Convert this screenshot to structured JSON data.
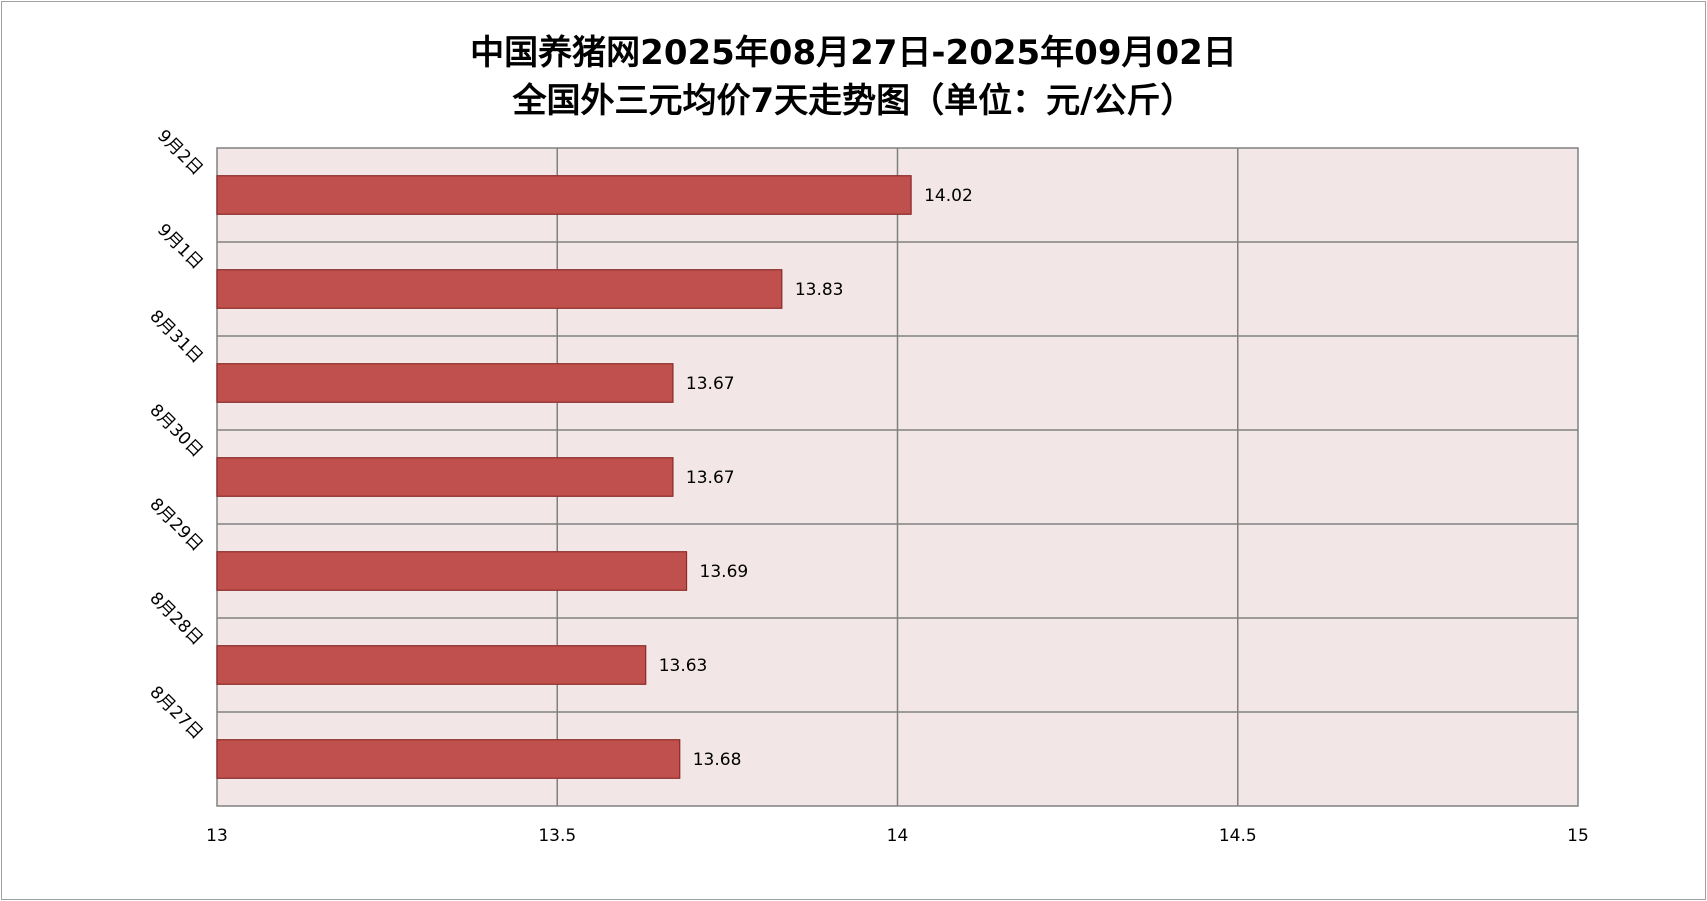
{
  "chart_data": {
    "type": "bar",
    "orientation": "horizontal",
    "title": "中国养猪网2025年08月27日-2025年09月02日",
    "subtitle": "全国外三元均价7天走势图（单位：元/公斤）",
    "categories": [
      "9月2日",
      "9月1日",
      "8月31日",
      "8月30日",
      "8月29日",
      "8月28日",
      "8月27日"
    ],
    "values": [
      14.02,
      13.83,
      13.67,
      13.67,
      13.69,
      13.63,
      13.68
    ],
    "data_labels": [
      "14.02",
      "13.83",
      "13.67",
      "13.67",
      "13.69",
      "13.63",
      "13.68"
    ],
    "xlim": [
      13,
      15
    ],
    "x_ticks": [
      13,
      13.5,
      14,
      14.5,
      15
    ],
    "x_tick_labels": [
      "13",
      "13.5",
      "14",
      "14.5",
      "15"
    ],
    "xlabel": "",
    "ylabel": "",
    "grid": true,
    "legend": "none",
    "colors": {
      "bar_fill": "#C0504D",
      "bar_stroke": "#8B2A28",
      "plot_background": "#F2E6E6",
      "grid": "#808080",
      "text": "#000000"
    }
  }
}
